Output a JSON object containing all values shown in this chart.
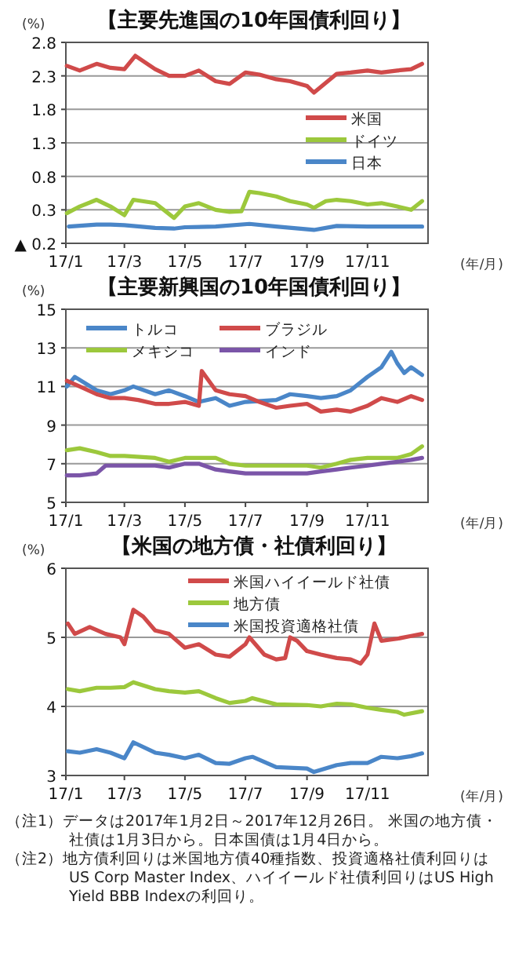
{
  "chart_data": [
    {
      "type": "line",
      "title": "【主要先進国の10年国債利回り】",
      "ylabel": "(%)",
      "xlabel": "(年/月)",
      "xlim": [
        "2017-01-01",
        "2018-01-01"
      ],
      "xticks": [
        {
          "value": "2017-01-01",
          "label": "17/1"
        },
        {
          "value": "2017-03-01",
          "label": "17/3"
        },
        {
          "value": "2017-05-01",
          "label": "17/5"
        },
        {
          "value": "2017-07-01",
          "label": "17/7"
        },
        {
          "value": "2017-09-01",
          "label": "17/9"
        },
        {
          "value": "2017-11-01",
          "label": "17/11"
        }
      ],
      "ylim": [
        -0.2,
        2.8
      ],
      "yticks": [
        {
          "value": -0.2,
          "label": "▲ 0.2"
        },
        0.3,
        0.8,
        1.3,
        1.8,
        2.3,
        2.8
      ],
      "grid": "y",
      "legend": "right",
      "series": [
        {
          "name": "米国",
          "color": "#d04a4a",
          "x": [
            "2017-01-02",
            "2017-01-15",
            "2017-02-01",
            "2017-02-15",
            "2017-03-01",
            "2017-03-12",
            "2017-04-01",
            "2017-04-15",
            "2017-05-01",
            "2017-05-15",
            "2017-06-01",
            "2017-06-15",
            "2017-07-01",
            "2017-07-15",
            "2017-08-01",
            "2017-08-15",
            "2017-09-01",
            "2017-09-08",
            "2017-10-01",
            "2017-10-15",
            "2017-11-01",
            "2017-11-15",
            "2017-12-01",
            "2017-12-15",
            "2017-12-26"
          ],
          "values": [
            2.45,
            2.38,
            2.48,
            2.42,
            2.4,
            2.6,
            2.4,
            2.3,
            2.3,
            2.38,
            2.22,
            2.18,
            2.35,
            2.32,
            2.25,
            2.22,
            2.15,
            2.05,
            2.33,
            2.35,
            2.38,
            2.35,
            2.38,
            2.4,
            2.48
          ]
        },
        {
          "name": "ドイツ",
          "color": "#9cc83c",
          "x": [
            "2017-01-02",
            "2017-01-15",
            "2017-02-01",
            "2017-02-15",
            "2017-03-01",
            "2017-03-10",
            "2017-04-01",
            "2017-04-20",
            "2017-05-01",
            "2017-05-15",
            "2017-06-01",
            "2017-06-15",
            "2017-06-27",
            "2017-07-05",
            "2017-07-15",
            "2017-08-01",
            "2017-08-15",
            "2017-09-01",
            "2017-09-08",
            "2017-09-20",
            "2017-10-01",
            "2017-10-15",
            "2017-11-01",
            "2017-11-15",
            "2017-12-01",
            "2017-12-15",
            "2017-12-26"
          ],
          "values": [
            0.25,
            0.35,
            0.45,
            0.35,
            0.22,
            0.45,
            0.4,
            0.18,
            0.35,
            0.4,
            0.3,
            0.27,
            0.28,
            0.57,
            0.55,
            0.5,
            0.43,
            0.38,
            0.33,
            0.43,
            0.45,
            0.43,
            0.38,
            0.4,
            0.35,
            0.3,
            0.43
          ]
        },
        {
          "name": "日本",
          "color": "#4a86c8",
          "x": [
            "2017-01-04",
            "2017-02-01",
            "2017-02-15",
            "2017-03-01",
            "2017-04-01",
            "2017-04-20",
            "2017-05-01",
            "2017-06-01",
            "2017-07-05",
            "2017-08-01",
            "2017-09-08",
            "2017-10-01",
            "2017-11-01",
            "2017-12-01",
            "2017-12-26"
          ],
          "values": [
            0.05,
            0.08,
            0.08,
            0.07,
            0.03,
            0.02,
            0.04,
            0.05,
            0.09,
            0.05,
            0.0,
            0.06,
            0.05,
            0.05,
            0.05
          ]
        }
      ]
    },
    {
      "type": "line",
      "title": "【主要新興国の10年国債利回り】",
      "ylabel": "(%)",
      "xlabel": "(年/月)",
      "xlim": [
        "2017-01-01",
        "2018-01-01"
      ],
      "xticks": [
        {
          "value": "2017-01-01",
          "label": "17/1"
        },
        {
          "value": "2017-03-01",
          "label": "17/3"
        },
        {
          "value": "2017-05-01",
          "label": "17/5"
        },
        {
          "value": "2017-07-01",
          "label": "17/7"
        },
        {
          "value": "2017-09-01",
          "label": "17/9"
        },
        {
          "value": "2017-11-01",
          "label": "17/11"
        }
      ],
      "ylim": [
        5,
        15
      ],
      "yticks": [
        5,
        7,
        9,
        11,
        13,
        15
      ],
      "grid": "y",
      "legend": "top",
      "series": [
        {
          "name": "トルコ",
          "color": "#4a86c8",
          "x": [
            "2017-01-02",
            "2017-01-10",
            "2017-02-01",
            "2017-02-15",
            "2017-03-01",
            "2017-03-10",
            "2017-04-01",
            "2017-04-15",
            "2017-05-01",
            "2017-05-15",
            "2017-06-01",
            "2017-06-15",
            "2017-07-01",
            "2017-08-01",
            "2017-08-15",
            "2017-09-01",
            "2017-09-15",
            "2017-10-01",
            "2017-10-15",
            "2017-11-01",
            "2017-11-15",
            "2017-11-25",
            "2017-12-01",
            "2017-12-08",
            "2017-12-15",
            "2017-12-26"
          ],
          "values": [
            11.0,
            11.5,
            10.8,
            10.6,
            10.8,
            11.0,
            10.6,
            10.8,
            10.5,
            10.2,
            10.4,
            10.0,
            10.2,
            10.3,
            10.6,
            10.5,
            10.4,
            10.5,
            10.8,
            11.5,
            12.0,
            12.8,
            12.2,
            11.7,
            12.0,
            11.6
          ]
        },
        {
          "name": "ブラジル",
          "color": "#d04a4a",
          "x": [
            "2017-01-02",
            "2017-01-15",
            "2017-02-01",
            "2017-02-15",
            "2017-03-01",
            "2017-03-15",
            "2017-04-01",
            "2017-04-15",
            "2017-05-01",
            "2017-05-15",
            "2017-05-18",
            "2017-06-01",
            "2017-06-15",
            "2017-07-01",
            "2017-07-15",
            "2017-08-01",
            "2017-08-15",
            "2017-09-01",
            "2017-09-15",
            "2017-10-01",
            "2017-10-15",
            "2017-11-01",
            "2017-11-15",
            "2017-12-01",
            "2017-12-15",
            "2017-12-26"
          ],
          "values": [
            11.3,
            11.0,
            10.6,
            10.4,
            10.4,
            10.3,
            10.1,
            10.1,
            10.2,
            10.0,
            11.8,
            10.8,
            10.6,
            10.5,
            10.2,
            9.9,
            10.0,
            10.1,
            9.7,
            9.8,
            9.7,
            10.0,
            10.4,
            10.2,
            10.5,
            10.3
          ]
        },
        {
          "name": "メキシコ",
          "color": "#9cc83c",
          "x": [
            "2017-01-02",
            "2017-01-15",
            "2017-02-01",
            "2017-02-15",
            "2017-03-01",
            "2017-04-01",
            "2017-04-15",
            "2017-05-01",
            "2017-05-15",
            "2017-06-01",
            "2017-06-15",
            "2017-07-01",
            "2017-08-01",
            "2017-09-01",
            "2017-09-15",
            "2017-10-01",
            "2017-10-15",
            "2017-11-01",
            "2017-11-15",
            "2017-12-01",
            "2017-12-15",
            "2017-12-26"
          ],
          "values": [
            7.7,
            7.8,
            7.6,
            7.4,
            7.4,
            7.3,
            7.1,
            7.3,
            7.3,
            7.3,
            7.0,
            6.9,
            6.9,
            6.9,
            6.8,
            7.0,
            7.2,
            7.3,
            7.3,
            7.3,
            7.5,
            7.9
          ]
        },
        {
          "name": "インド",
          "color": "#7b55a8",
          "x": [
            "2017-01-02",
            "2017-01-15",
            "2017-02-01",
            "2017-02-10",
            "2017-03-01",
            "2017-04-01",
            "2017-04-15",
            "2017-05-01",
            "2017-05-15",
            "2017-06-01",
            "2017-06-15",
            "2017-07-01",
            "2017-08-01",
            "2017-09-01",
            "2017-09-15",
            "2017-10-01",
            "2017-10-15",
            "2017-11-01",
            "2017-11-15",
            "2017-12-01",
            "2017-12-15",
            "2017-12-26"
          ],
          "values": [
            6.4,
            6.4,
            6.5,
            6.9,
            6.9,
            6.9,
            6.8,
            7.0,
            7.0,
            6.7,
            6.6,
            6.5,
            6.5,
            6.5,
            6.6,
            6.7,
            6.8,
            6.9,
            7.0,
            7.1,
            7.2,
            7.3
          ]
        }
      ]
    },
    {
      "type": "line",
      "title": "【米国の地方債・社債利回り】",
      "ylabel": "(%)",
      "xlabel": "(年/月)",
      "xlim": [
        "2017-01-01",
        "2018-01-01"
      ],
      "xticks": [
        {
          "value": "2017-01-01",
          "label": "17/1"
        },
        {
          "value": "2017-03-01",
          "label": "17/3"
        },
        {
          "value": "2017-05-01",
          "label": "17/5"
        },
        {
          "value": "2017-07-01",
          "label": "17/7"
        },
        {
          "value": "2017-09-01",
          "label": "17/9"
        },
        {
          "value": "2017-11-01",
          "label": "17/11"
        }
      ],
      "ylim": [
        3,
        6
      ],
      "yticks": [
        3,
        4,
        5,
        6
      ],
      "grid": "y",
      "legend": "top right",
      "series": [
        {
          "name": "米国ハイイールド社債",
          "color": "#d04a4a",
          "x": [
            "2017-01-03",
            "2017-01-10",
            "2017-01-25",
            "2017-02-10",
            "2017-02-25",
            "2017-03-01",
            "2017-03-10",
            "2017-03-20",
            "2017-04-01",
            "2017-04-15",
            "2017-05-01",
            "2017-05-15",
            "2017-06-01",
            "2017-06-15",
            "2017-07-01",
            "2017-07-05",
            "2017-07-20",
            "2017-08-01",
            "2017-08-10",
            "2017-08-15",
            "2017-08-22",
            "2017-09-01",
            "2017-09-15",
            "2017-10-01",
            "2017-10-15",
            "2017-10-25",
            "2017-11-01",
            "2017-11-08",
            "2017-11-15",
            "2017-12-01",
            "2017-12-15",
            "2017-12-26"
          ],
          "values": [
            5.2,
            5.05,
            5.15,
            5.05,
            5.0,
            4.9,
            5.4,
            5.3,
            5.1,
            5.05,
            4.85,
            4.9,
            4.75,
            4.72,
            4.9,
            5.0,
            4.75,
            4.68,
            4.7,
            5.0,
            4.95,
            4.8,
            4.75,
            4.7,
            4.68,
            4.62,
            4.75,
            5.2,
            4.95,
            4.98,
            5.02,
            5.05
          ]
        },
        {
          "name": "地方債",
          "color": "#9cc83c",
          "x": [
            "2017-01-03",
            "2017-01-15",
            "2017-02-01",
            "2017-02-15",
            "2017-03-01",
            "2017-03-10",
            "2017-04-01",
            "2017-04-15",
            "2017-05-01",
            "2017-05-15",
            "2017-06-01",
            "2017-06-15",
            "2017-07-01",
            "2017-07-08",
            "2017-08-01",
            "2017-09-01",
            "2017-09-15",
            "2017-10-01",
            "2017-10-15",
            "2017-11-01",
            "2017-11-15",
            "2017-12-01",
            "2017-12-08",
            "2017-12-26"
          ],
          "values": [
            4.25,
            4.22,
            4.27,
            4.27,
            4.28,
            4.35,
            4.25,
            4.22,
            4.2,
            4.22,
            4.12,
            4.05,
            4.08,
            4.12,
            4.03,
            4.02,
            4.0,
            4.04,
            4.03,
            3.98,
            3.95,
            3.92,
            3.88,
            3.93
          ]
        },
        {
          "name": "米国投資適格社債",
          "color": "#4a86c8",
          "x": [
            "2017-01-03",
            "2017-01-15",
            "2017-02-01",
            "2017-02-15",
            "2017-03-01",
            "2017-03-10",
            "2017-04-01",
            "2017-04-15",
            "2017-05-01",
            "2017-05-15",
            "2017-06-01",
            "2017-06-15",
            "2017-07-01",
            "2017-07-08",
            "2017-08-01",
            "2017-09-01",
            "2017-09-08",
            "2017-10-01",
            "2017-10-15",
            "2017-11-01",
            "2017-11-15",
            "2017-12-01",
            "2017-12-15",
            "2017-12-26"
          ],
          "values": [
            3.35,
            3.33,
            3.38,
            3.33,
            3.25,
            3.48,
            3.33,
            3.3,
            3.25,
            3.3,
            3.18,
            3.17,
            3.25,
            3.27,
            3.12,
            3.1,
            3.05,
            3.15,
            3.18,
            3.18,
            3.27,
            3.25,
            3.28,
            3.32
          ]
        }
      ],
      "annotations": [
        "（注1）データは2017年1月2日～2017年12月26日。 米国の地方債・社債は1月3日から。日本国債は1月4日から。",
        "（注2）地方債利回りは米国地方債40種指数、投資適格社債利回りはUS Corp Master Index、ハイイールド社債利回りはUS High Yield BBB Indexの利回り。"
      ]
    }
  ]
}
